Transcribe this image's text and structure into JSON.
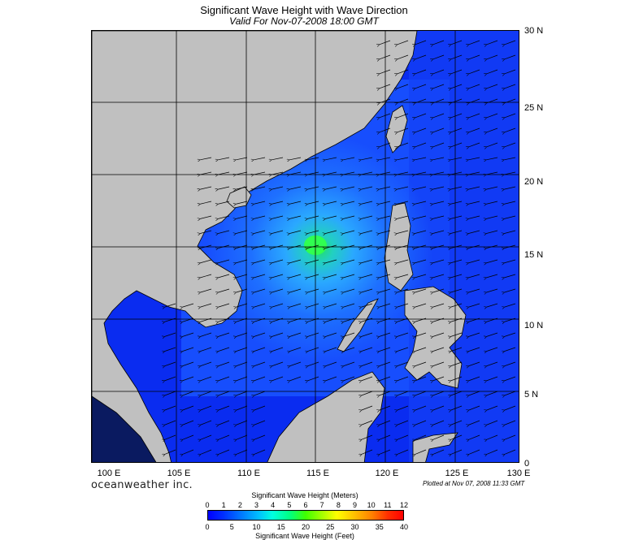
{
  "title": "Significant Wave Height with Wave Direction",
  "subtitle": "Valid For Nov-07-2008 18:00 GMT",
  "lat_labels": [
    "30 N",
    "25 N",
    "20 N",
    "15 N",
    "10 N",
    "5 N",
    "0"
  ],
  "lon_labels": [
    "100 E",
    "105 E",
    "110 E",
    "115 E",
    "120 E",
    "125 E",
    "130 E"
  ],
  "brand": "oceanweather inc.",
  "plotted_at": "Plotted at Nov 07, 2008 11:33 GMT",
  "legend": {
    "title_top": "Significant Wave Height (Meters)",
    "title_bottom": "Significant Wave Height (Feet)",
    "meters_ticks": [
      "0",
      "1",
      "2",
      "3",
      "4",
      "5",
      "6",
      "7",
      "8",
      "9",
      "10",
      "11",
      "12"
    ],
    "feet_ticks": [
      "0",
      "5",
      "10",
      "15",
      "20",
      "25",
      "30",
      "35",
      "40"
    ]
  },
  "colors": {
    "land": "#c0c0c0",
    "ocean_deep": "#0a2cf0",
    "ocean_mid": "#1e6bff",
    "ocean_light": "#3aa0ff",
    "peak": "#22e060"
  },
  "wave_direction": "westward, toward the west-southwest across the South China Sea; northeasterly near Taiwan",
  "peak_wave_height_m": 6
}
